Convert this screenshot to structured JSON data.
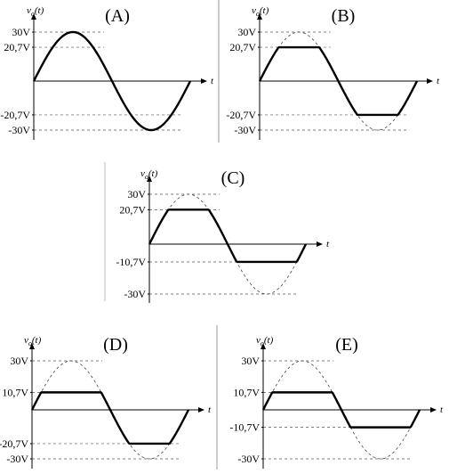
{
  "panels": [
    {
      "letter": "(A)",
      "ylabel": "v",
      "ylabel_sub": "o",
      "ylabel_arg": "(t)",
      "xlabel": "t",
      "ticks": [
        {
          "label": "30V",
          "value": 30
        },
        {
          "label": "20,7V",
          "value": 20.7
        },
        {
          "label": "-20,7V",
          "value": -20.7
        },
        {
          "label": "-30V",
          "value": -30
        }
      ],
      "clip_top": 30,
      "clip_bottom": -30,
      "amplitude": 30
    },
    {
      "letter": "(B)",
      "ylabel": "v",
      "ylabel_sub": "o",
      "ylabel_arg": "(t)",
      "xlabel": "t",
      "ticks": [
        {
          "label": "30V",
          "value": 30
        },
        {
          "label": "20,7V",
          "value": 20.7
        },
        {
          "label": "-20,7V",
          "value": -20.7
        },
        {
          "label": "-30V",
          "value": -30
        }
      ],
      "clip_top": 20.7,
      "clip_bottom": -20.7,
      "amplitude": 30
    },
    {
      "letter": "(C)",
      "ylabel": "v",
      "ylabel_sub": "o",
      "ylabel_arg": "(t)",
      "xlabel": "t",
      "ticks": [
        {
          "label": "30V",
          "value": 30
        },
        {
          "label": "20,7V",
          "value": 20.7
        },
        {
          "label": "-10,7V",
          "value": -10.7
        },
        {
          "label": "-30V",
          "value": -30
        }
      ],
      "clip_top": 20.7,
      "clip_bottom": -10.7,
      "amplitude": 30
    },
    {
      "letter": "(D)",
      "ylabel": "v",
      "ylabel_sub": "o",
      "ylabel_arg": "(t)",
      "xlabel": "t",
      "ticks": [
        {
          "label": "30V",
          "value": 30
        },
        {
          "label": "10,7V",
          "value": 10.7
        },
        {
          "label": "-20,7V",
          "value": -20.7
        },
        {
          "label": "-30V",
          "value": -30
        }
      ],
      "clip_top": 10.7,
      "clip_bottom": -20.7,
      "amplitude": 30
    },
    {
      "letter": "(E)",
      "ylabel": "v",
      "ylabel_sub": "o",
      "ylabel_arg": "(t)",
      "xlabel": "t",
      "ticks": [
        {
          "label": "30V",
          "value": 30
        },
        {
          "label": "10,7V",
          "value": 10.7
        },
        {
          "label": "-10,7V",
          "value": -10.7
        },
        {
          "label": "-30V",
          "value": -30
        }
      ],
      "clip_top": 10.7,
      "clip_bottom": -10.7,
      "amplitude": 30
    }
  ]
}
